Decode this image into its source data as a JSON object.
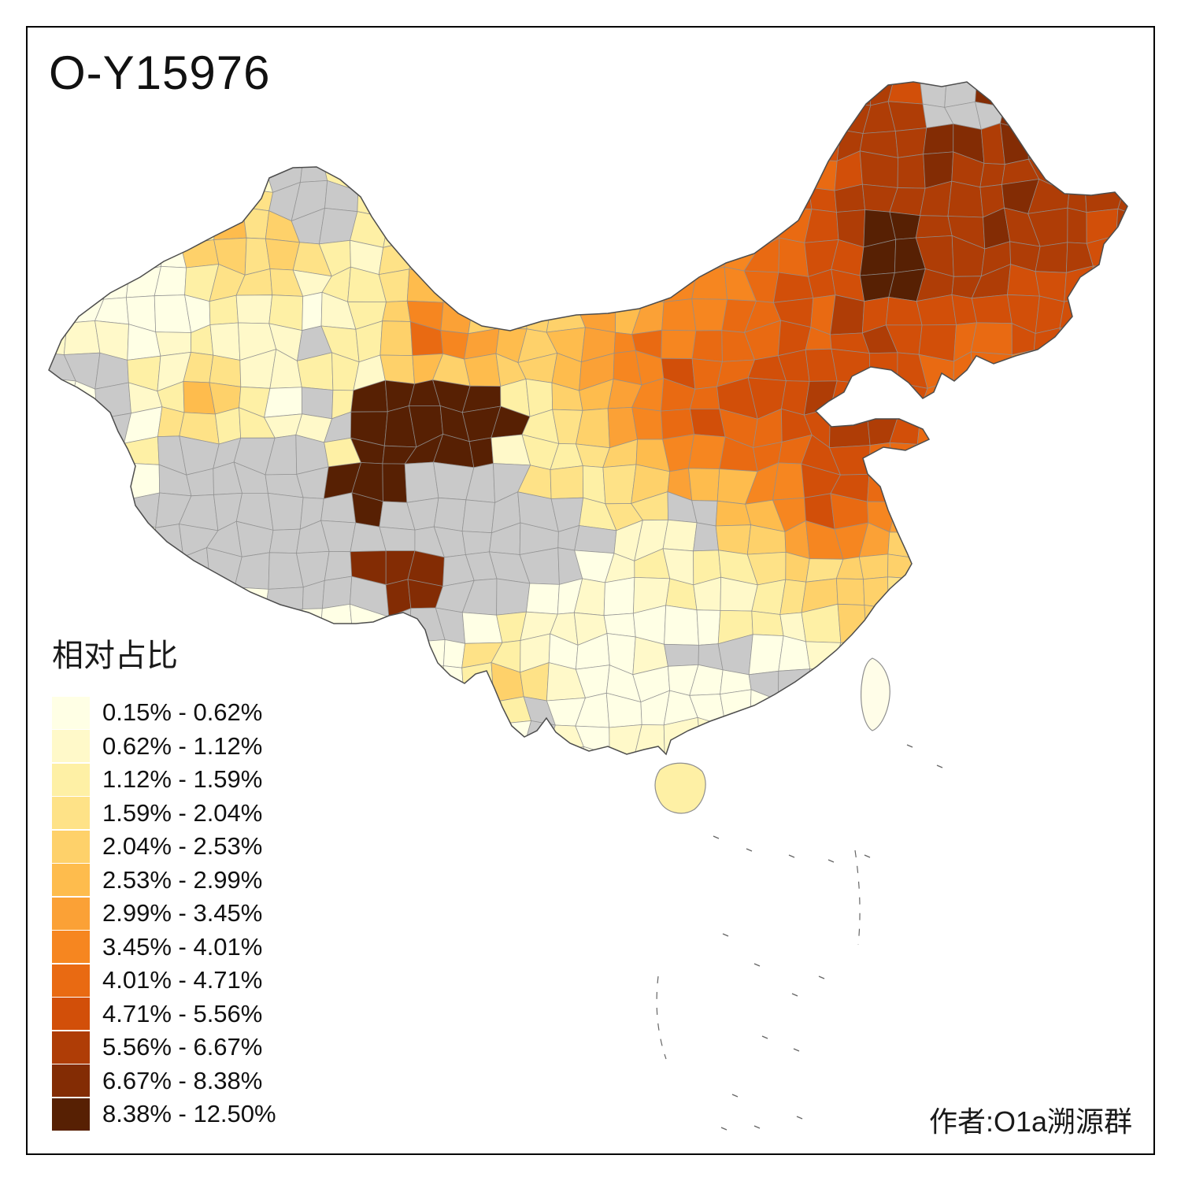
{
  "title": "O-Y15976",
  "legend": {
    "title": "相对占比",
    "breaks": [
      0.15,
      0.62,
      1.12,
      1.59,
      2.04,
      2.53,
      2.99,
      3.45,
      4.01,
      4.71,
      5.56,
      6.67,
      8.38
    ],
    "max_value": 12.5,
    "bins": [
      {
        "label": "0.15% - 0.62%",
        "color": "#FFFFE5"
      },
      {
        "label": "0.62% - 1.12%",
        "color": "#FFF9C9"
      },
      {
        "label": "1.12% - 1.59%",
        "color": "#FEF0A5"
      },
      {
        "label": "1.59% - 2.04%",
        "color": "#FEE287"
      },
      {
        "label": "2.04% - 2.53%",
        "color": "#FED16A"
      },
      {
        "label": "2.53% - 2.99%",
        "color": "#FEBC4D"
      },
      {
        "label": "2.99% - 3.45%",
        "color": "#FBA136"
      },
      {
        "label": "3.45% - 4.01%",
        "color": "#F68620"
      },
      {
        "label": "4.01% - 4.71%",
        "color": "#E96A12"
      },
      {
        "label": "4.71% - 5.56%",
        "color": "#D24F09"
      },
      {
        "label": "5.56% - 6.67%",
        "color": "#AF3D06"
      },
      {
        "label": "6.67% - 8.38%",
        "color": "#832C04"
      },
      {
        "label": "8.38% - 12.50%",
        "color": "#572003"
      }
    ],
    "no_data_color": "#C9C9C9"
  },
  "credit": "作者:O1a溯源群"
}
